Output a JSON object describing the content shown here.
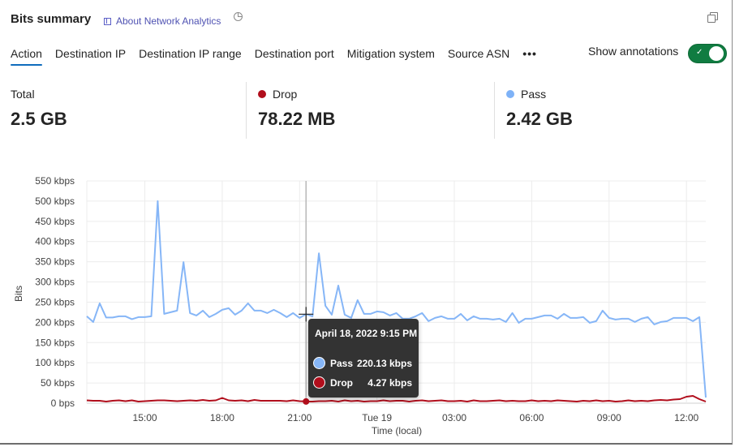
{
  "header": {
    "title": "Bits summary",
    "about_link": "About Network Analytics",
    "icons": [
      "book-icon",
      "history-icon",
      "copy-icon"
    ]
  },
  "tabs": [
    {
      "label": "Action",
      "active": true
    },
    {
      "label": "Destination IP"
    },
    {
      "label": "Destination IP range"
    },
    {
      "label": "Destination port"
    },
    {
      "label": "Mitigation system"
    },
    {
      "label": "Source ASN"
    }
  ],
  "more_label": "•••",
  "annotations": {
    "label": "Show annotations",
    "on": true
  },
  "metrics": [
    {
      "label": "Total",
      "value": "2.5 GB"
    },
    {
      "label": "Drop",
      "value": "78.22 MB",
      "color": "#b10e1c"
    },
    {
      "label": "Pass",
      "value": "2.42 GB",
      "color": "#7eb2f7"
    }
  ],
  "tooltip": {
    "title": "April 18, 2022 9:15 PM",
    "rows": [
      {
        "name": "Pass",
        "value": "220.13 kbps",
        "color": "#86b6f7"
      },
      {
        "name": "Drop",
        "value": "4.27 kbps",
        "color": "#b10e1c"
      }
    ]
  },
  "chart_data": {
    "type": "line",
    "ylabel": "Bits",
    "xlabel": "Time (local)",
    "ylim": [
      0,
      550
    ],
    "yticks": [
      "0 bps",
      "50 kbps",
      "100 kbps",
      "150 kbps",
      "200 kbps",
      "250 kbps",
      "300 kbps",
      "350 kbps",
      "400 kbps",
      "450 kbps",
      "500 kbps",
      "550 kbps"
    ],
    "xticks": [
      "15:00",
      "18:00",
      "21:00",
      "Tue 19",
      "03:00",
      "06:00",
      "09:00",
      "12:00"
    ],
    "grid": true,
    "hover_time": "21:15",
    "x": [
      "12:45",
      "13:00",
      "13:15",
      "13:30",
      "13:45",
      "14:00",
      "14:15",
      "14:30",
      "14:45",
      "15:00",
      "15:15",
      "15:30",
      "15:45",
      "16:00",
      "16:15",
      "16:30",
      "16:45",
      "17:00",
      "17:15",
      "17:30",
      "17:45",
      "18:00",
      "18:15",
      "18:30",
      "18:45",
      "19:00",
      "19:15",
      "19:30",
      "19:45",
      "20:00",
      "20:15",
      "20:30",
      "20:45",
      "21:00",
      "21:15",
      "21:30",
      "21:45",
      "22:00",
      "22:15",
      "22:30",
      "22:45",
      "23:00",
      "23:15",
      "23:30",
      "23:45",
      "00:00",
      "00:15",
      "00:30",
      "00:45",
      "01:00",
      "01:15",
      "01:30",
      "01:45",
      "02:00",
      "02:15",
      "02:30",
      "02:45",
      "03:00",
      "03:15",
      "03:30",
      "03:45",
      "04:00",
      "04:15",
      "04:30",
      "04:45",
      "05:00",
      "05:15",
      "05:30",
      "05:45",
      "06:00",
      "06:15",
      "06:30",
      "06:45",
      "07:00",
      "07:15",
      "07:30",
      "07:45",
      "08:00",
      "08:15",
      "08:30",
      "08:45",
      "09:00",
      "09:15",
      "09:30",
      "09:45",
      "10:00",
      "10:15",
      "10:30",
      "10:45",
      "11:00",
      "11:15",
      "11:30",
      "11:45",
      "12:00",
      "12:15",
      "12:30",
      "12:45"
    ],
    "series": [
      {
        "name": "Pass",
        "color": "#86b6f7",
        "values": [
          215,
          201,
          247,
          212,
          212,
          215,
          215,
          208,
          213,
          213,
          215,
          500,
          221,
          225,
          229,
          349,
          223,
          217,
          229,
          213,
          221,
          231,
          235,
          219,
          229,
          247,
          229,
          229,
          223,
          231,
          223,
          213,
          223,
          211,
          220.13,
          215,
          371,
          241,
          219,
          291,
          219,
          211,
          255,
          221,
          221,
          227,
          225,
          217,
          223,
          209,
          209,
          215,
          223,
          203,
          211,
          215,
          209,
          209,
          221,
          205,
          215,
          209,
          209,
          207,
          209,
          201,
          223,
          199,
          209,
          209,
          213,
          217,
          217,
          209,
          221,
          211,
          211,
          213,
          199,
          203,
          229,
          211,
          207,
          209,
          209,
          201,
          209,
          213,
          195,
          201,
          203,
          211,
          211,
          211,
          203,
          213,
          14
        ]
      },
      {
        "name": "Drop",
        "color": "#b10e1c",
        "values": [
          7,
          6,
          6,
          4,
          6,
          7,
          5,
          7,
          4,
          5,
          6,
          7,
          7,
          6,
          5,
          6,
          7,
          6,
          8,
          6,
          7,
          13,
          7,
          6,
          7,
          5,
          8,
          6,
          6,
          6,
          6,
          5,
          7,
          5,
          4.27,
          4,
          5,
          5,
          6,
          4,
          7,
          5,
          6,
          4,
          5,
          5,
          7,
          5,
          6,
          6,
          4,
          6,
          7,
          5,
          6,
          7,
          5,
          5,
          6,
          4,
          7,
          5,
          5,
          6,
          7,
          5,
          6,
          5,
          5,
          7,
          5,
          6,
          5,
          7,
          6,
          5,
          4,
          6,
          5,
          7,
          5,
          6,
          4,
          5,
          7,
          5,
          6,
          5,
          7,
          8,
          7,
          9,
          10,
          16,
          18,
          10,
          4
        ]
      }
    ]
  }
}
